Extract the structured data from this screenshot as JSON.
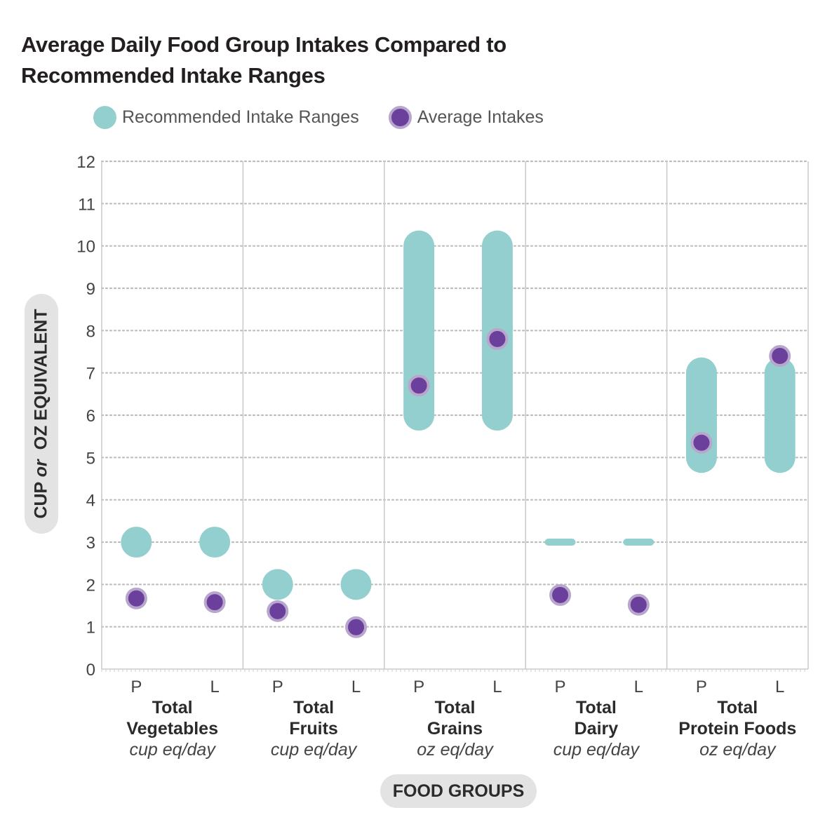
{
  "chart_data": {
    "type": "range-dot",
    "title": [
      "Average Daily Food Group Intakes Compared to",
      "Recommended Intake Ranges"
    ],
    "legend": [
      {
        "label": "Recommended Intake Ranges",
        "color": "#94cfd0"
      },
      {
        "label": "Average Intakes",
        "color": "#6a409c"
      }
    ],
    "ylabel": "CUP or  OZ EQUIVALENT",
    "ylabel_parts": {
      "pre": "CUP ",
      "italic": "or",
      "post": "  OZ EQUIVALENT"
    },
    "xlabel": "FOOD GROUPS",
    "ylim": [
      0,
      12
    ],
    "yticks": [
      0,
      1,
      2,
      3,
      4,
      5,
      6,
      7,
      8,
      9,
      10,
      11,
      12
    ],
    "groups": [
      {
        "name": [
          "Total",
          "Vegetables"
        ],
        "unit": "cup eq/day",
        "subgroups": [
          {
            "label": "P",
            "range": [
              3,
              3
            ],
            "average": 1.67
          },
          {
            "label": "L",
            "range": [
              3,
              3
            ],
            "average": 1.58
          }
        ]
      },
      {
        "name": [
          "Total",
          "Fruits"
        ],
        "unit": "cup eq/day",
        "subgroups": [
          {
            "label": "P",
            "range": [
              2,
              2
            ],
            "average": 1.37
          },
          {
            "label": "L",
            "range": [
              2,
              2
            ],
            "average": 0.99
          }
        ]
      },
      {
        "name": [
          "Total",
          "Grains"
        ],
        "unit": "oz eq/day",
        "subgroups": [
          {
            "label": "P",
            "range": [
              6,
              10
            ],
            "average": 6.7
          },
          {
            "label": "L",
            "range": [
              6,
              10
            ],
            "average": 7.8
          }
        ]
      },
      {
        "name": [
          "Total",
          "Dairy"
        ],
        "unit": "cup eq/day",
        "subgroups": [
          {
            "label": "P",
            "range": [
              3,
              3
            ],
            "average": 1.75,
            "style": "bar"
          },
          {
            "label": "L",
            "range": [
              3,
              3
            ],
            "average": 1.52,
            "style": "bar"
          }
        ]
      },
      {
        "name": [
          "Total",
          "Protein Foods"
        ],
        "unit": "oz eq/day",
        "subgroups": [
          {
            "label": "P",
            "range": [
              5,
              7
            ],
            "average": 5.35
          },
          {
            "label": "L",
            "range": [
              5,
              7
            ],
            "average": 7.4
          }
        ]
      }
    ]
  }
}
